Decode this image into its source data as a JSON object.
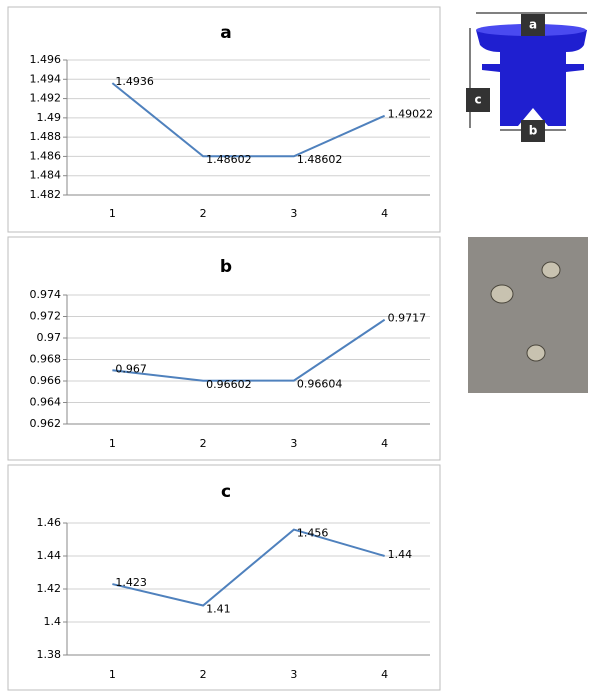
{
  "chart_data": [
    {
      "type": "line",
      "title": "a",
      "categories": [
        "1",
        "2",
        "3",
        "4"
      ],
      "values": [
        1.4936,
        1.48602,
        1.48602,
        1.49022
      ],
      "color": "#4f81bd",
      "ylim": [
        1.482,
        1.496
      ],
      "yticks": [
        1.482,
        1.484,
        1.486,
        1.488,
        1.49,
        1.492,
        1.494,
        1.496
      ],
      "grid": true
    },
    {
      "type": "line",
      "title": "b",
      "categories": [
        "1",
        "2",
        "3",
        "4"
      ],
      "values": [
        0.967,
        0.96602,
        0.96604,
        0.9717
      ],
      "color": "#4f81bd",
      "ylim": [
        0.962,
        0.974
      ],
      "yticks": [
        0.962,
        0.964,
        0.966,
        0.968,
        0.97,
        0.972,
        0.974
      ],
      "grid": true
    },
    {
      "type": "line",
      "title": "c",
      "categories": [
        "1",
        "2",
        "3",
        "4"
      ],
      "values": [
        1.423,
        1.41,
        1.456,
        1.44
      ],
      "color": "#4f81bd",
      "ylim": [
        1.38,
        1.46
      ],
      "yticks": [
        1.38,
        1.4,
        1.42,
        1.44,
        1.46
      ],
      "grid": true
    }
  ],
  "diagram": {
    "labels": [
      "a",
      "c",
      "b"
    ]
  }
}
